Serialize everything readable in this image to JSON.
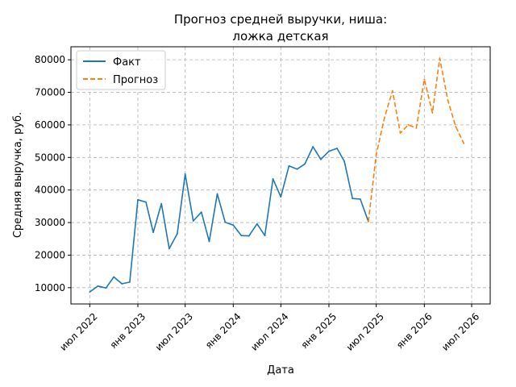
{
  "chart_data": {
    "type": "line",
    "title": [
      "Прогноз средней выручки, ниша:",
      "ложка детская"
    ],
    "xlabel": "Дата",
    "ylabel": "Средняя выручка, руб.",
    "ylim": [
      5000,
      84000
    ],
    "xlim": [
      "2022-04-20",
      "2026-09-10"
    ],
    "grid": true,
    "legend_position": "top-left",
    "x_ticks": [
      {
        "date": "2022-07-01",
        "label": "июл 2022"
      },
      {
        "date": "2023-01-01",
        "label": "янв 2023"
      },
      {
        "date": "2023-07-01",
        "label": "июл 2023"
      },
      {
        "date": "2024-01-01",
        "label": "янв 2024"
      },
      {
        "date": "2024-07-01",
        "label": "июл 2024"
      },
      {
        "date": "2025-01-01",
        "label": "янв 2025"
      },
      {
        "date": "2025-07-01",
        "label": "июл 2025"
      },
      {
        "date": "2026-01-01",
        "label": "янв 2026"
      },
      {
        "date": "2026-07-01",
        "label": "июл 2026"
      }
    ],
    "y_ticks": [
      10000,
      20000,
      30000,
      40000,
      50000,
      60000,
      70000,
      80000
    ],
    "series": [
      {
        "name": "Факт",
        "color": "#1f77b4",
        "style": "solid",
        "points": [
          [
            "2022-07-01",
            8700
          ],
          [
            "2022-08-01",
            10500
          ],
          [
            "2022-09-01",
            9900
          ],
          [
            "2022-10-01",
            13300
          ],
          [
            "2022-11-01",
            11200
          ],
          [
            "2022-12-01",
            11700
          ],
          [
            "2023-01-01",
            37000
          ],
          [
            "2023-02-01",
            36300
          ],
          [
            "2023-03-01",
            27000
          ],
          [
            "2023-04-01",
            35800
          ],
          [
            "2023-05-01",
            22000
          ],
          [
            "2023-06-01",
            26600
          ],
          [
            "2023-07-01",
            44900
          ],
          [
            "2023-08-01",
            30500
          ],
          [
            "2023-09-01",
            33200
          ],
          [
            "2023-10-01",
            24200
          ],
          [
            "2023-11-01",
            38800
          ],
          [
            "2023-12-01",
            30100
          ],
          [
            "2024-01-01",
            29200
          ],
          [
            "2024-02-01",
            26000
          ],
          [
            "2024-03-01",
            25900
          ],
          [
            "2024-04-01",
            29600
          ],
          [
            "2024-05-01",
            26000
          ],
          [
            "2024-06-01",
            43400
          ],
          [
            "2024-07-01",
            37900
          ],
          [
            "2024-08-01",
            47400
          ],
          [
            "2024-09-01",
            46400
          ],
          [
            "2024-10-01",
            48000
          ],
          [
            "2024-11-01",
            53300
          ],
          [
            "2024-12-01",
            49400
          ],
          [
            "2025-01-01",
            51900
          ],
          [
            "2025-02-01",
            52800
          ],
          [
            "2025-03-01",
            48800
          ],
          [
            "2025-04-01",
            37400
          ],
          [
            "2025-05-01",
            37200
          ],
          [
            "2025-06-01",
            30300
          ]
        ]
      },
      {
        "name": "Прогноз",
        "color": "#ff7f0e",
        "style": "dashed",
        "points": [
          [
            "2025-06-01",
            30300
          ],
          [
            "2025-07-01",
            51000
          ],
          [
            "2025-08-01",
            62000
          ],
          [
            "2025-09-01",
            70500
          ],
          [
            "2025-10-01",
            57500
          ],
          [
            "2025-11-01",
            60000
          ],
          [
            "2025-12-01",
            59000
          ],
          [
            "2026-01-01",
            74000
          ],
          [
            "2026-02-01",
            63700
          ],
          [
            "2026-03-01",
            80500
          ],
          [
            "2026-04-01",
            67500
          ],
          [
            "2026-05-01",
            59500
          ],
          [
            "2026-06-01",
            54300
          ]
        ]
      }
    ]
  }
}
